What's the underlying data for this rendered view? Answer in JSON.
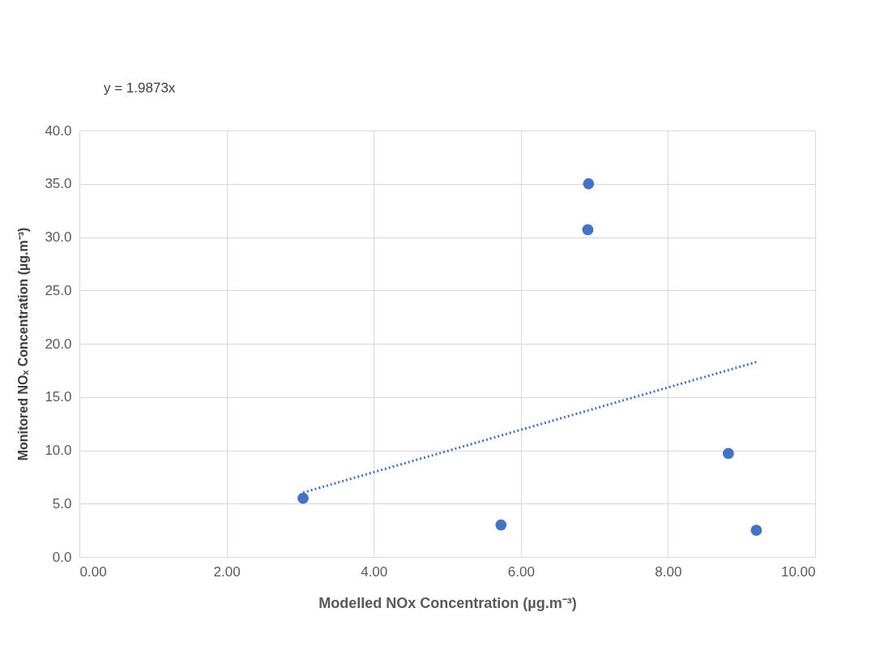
{
  "chart_data": {
    "type": "scatter",
    "xlabel": "Modelled NOx Concentration (µg.m⁻³)",
    "ylabel": "Monitored NOₓ Concentration (µg.m⁻³)",
    "annotations": [
      "y = 1.9873x"
    ],
    "series": [
      {
        "color": "#4472c4",
        "marker": "circle",
        "x": [
          3.04,
          5.73,
          6.92,
          6.91,
          8.82,
          9.2
        ],
        "values": [
          5.5,
          3.0,
          35.0,
          30.7,
          9.7,
          2.5
        ]
      },
      {
        "type": "line",
        "color": "#4472c4",
        "line_style": "dotted",
        "x": [
          3.04,
          9.2
        ],
        "values": [
          6.04,
          18.28
        ]
      }
    ],
    "xlim": [
      0,
      10
    ],
    "ylim": [
      0,
      40
    ],
    "xticks": [
      {
        "value": 0,
        "label": "0.00"
      },
      {
        "value": 2,
        "label": "2.00"
      },
      {
        "value": 4,
        "label": "4.00"
      },
      {
        "value": 6,
        "label": "6.00"
      },
      {
        "value": 8,
        "label": "8.00"
      },
      {
        "value": 10,
        "label": "10.00"
      }
    ],
    "yticks": [
      {
        "value": 0,
        "label": "0.0"
      },
      {
        "value": 5,
        "label": "5.0"
      },
      {
        "value": 10,
        "label": "10.0"
      },
      {
        "value": 15,
        "label": "15.0"
      },
      {
        "value": 20,
        "label": "20.0"
      },
      {
        "value": 25,
        "label": "25.0"
      },
      {
        "value": 30,
        "label": "30.0"
      },
      {
        "value": 35,
        "label": "35.0"
      },
      {
        "value": 40,
        "label": "40.0"
      }
    ],
    "grid": true
  }
}
